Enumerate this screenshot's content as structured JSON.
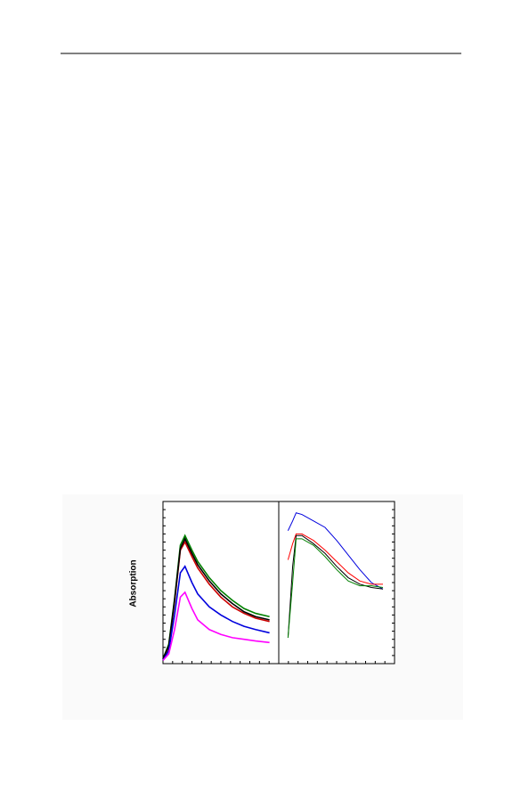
{
  "chart_data": [
    {
      "type": "line",
      "y_label": "Absorption",
      "x": [
        0,
        0.5,
        1,
        1.5,
        1.9,
        2.5,
        3,
        4,
        5,
        6,
        7,
        8,
        9.2
      ],
      "xlim": [
        0,
        10
      ],
      "ylim": [
        0,
        10
      ],
      "series": [
        {
          "color": "#008000",
          "values": [
            0.3,
            1.2,
            4.0,
            7.3,
            7.9,
            7.0,
            6.3,
            5.3,
            4.5,
            3.9,
            3.4,
            3.1,
            2.9
          ]
        },
        {
          "color": "#cc0000",
          "values": [
            0.3,
            1.0,
            3.8,
            7.0,
            7.5,
            6.6,
            5.9,
            4.9,
            4.1,
            3.5,
            3.1,
            2.8,
            2.6
          ]
        },
        {
          "color": "#000000",
          "values": [
            0.3,
            1.1,
            3.9,
            7.1,
            7.7,
            6.8,
            6.1,
            5.1,
            4.3,
            3.7,
            3.2,
            2.9,
            2.7
          ]
        },
        {
          "color": "#0000dd",
          "values": [
            0.2,
            0.8,
            3.0,
            5.6,
            6.0,
            5.0,
            4.3,
            3.5,
            3.0,
            2.6,
            2.3,
            2.1,
            1.9
          ]
        },
        {
          "color": "#ff00ff",
          "values": [
            0.2,
            0.6,
            2.1,
            4.1,
            4.4,
            3.4,
            2.7,
            2.1,
            1.8,
            1.6,
            1.5,
            1.4,
            1.3
          ]
        }
      ]
    },
    {
      "type": "line",
      "x": [
        0.8,
        1.2,
        1.5,
        2,
        3,
        4,
        5,
        6,
        7,
        8,
        9
      ],
      "xlim": [
        0,
        10
      ],
      "ylim": [
        0,
        10
      ],
      "series": [
        {
          "color": "#0000dd",
          "values": [
            8.2,
            8.8,
            9.3,
            9.2,
            8.8,
            8.4,
            7.6,
            6.7,
            5.8,
            5.0,
            4.6
          ]
        },
        {
          "color": "#ff0000",
          "values": [
            6.4,
            7.4,
            8.0,
            8.0,
            7.6,
            7.0,
            6.3,
            5.6,
            5.1,
            4.9,
            4.9
          ]
        },
        {
          "color": "#000000",
          "values": [
            1.6,
            6.0,
            7.9,
            7.9,
            7.4,
            6.8,
            6.0,
            5.3,
            4.9,
            4.7,
            4.6
          ]
        },
        {
          "color": "#008000",
          "values": [
            1.6,
            5.0,
            7.7,
            7.7,
            7.3,
            6.6,
            5.8,
            5.1,
            4.8,
            4.8,
            4.7
          ]
        }
      ]
    }
  ]
}
